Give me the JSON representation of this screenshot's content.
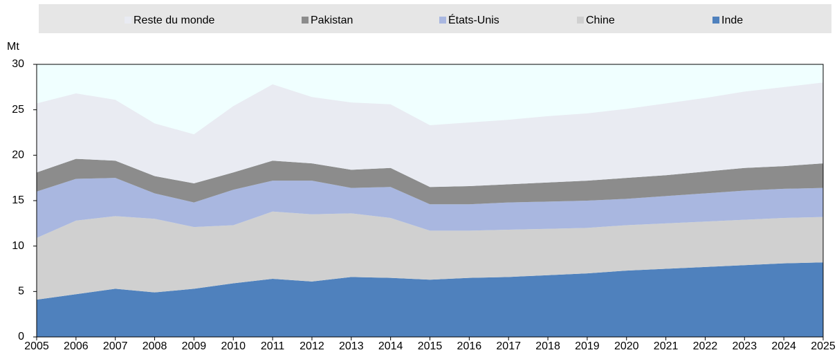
{
  "chart_data": {
    "type": "stacked-area",
    "y_label": "Mt",
    "x": [
      2005,
      2006,
      2007,
      2008,
      2009,
      2010,
      2011,
      2012,
      2013,
      2014,
      2015,
      2016,
      2017,
      2018,
      2019,
      2020,
      2021,
      2022,
      2023,
      2024,
      2025
    ],
    "series": [
      {
        "name": "Inde",
        "color": "#4f81bd",
        "values": [
          4.1,
          4.7,
          5.3,
          4.9,
          5.3,
          5.9,
          6.4,
          6.1,
          6.6,
          6.5,
          6.3,
          6.5,
          6.6,
          6.8,
          7.0,
          7.3,
          7.5,
          7.7,
          7.9,
          8.1,
          8.2
        ]
      },
      {
        "name": "Chine",
        "color": "#d0d0d0",
        "values": [
          6.8,
          8.1,
          8.0,
          8.1,
          6.8,
          6.4,
          7.4,
          7.4,
          7.0,
          6.6,
          5.4,
          5.2,
          5.2,
          5.1,
          5.0,
          5.0,
          5.0,
          5.0,
          5.0,
          5.0,
          5.0
        ]
      },
      {
        "name": "États-Unis",
        "color": "#a9b7e0",
        "values": [
          5.1,
          4.6,
          4.2,
          2.8,
          2.7,
          3.9,
          3.4,
          3.7,
          2.8,
          3.4,
          2.9,
          2.9,
          3.0,
          3.0,
          3.0,
          2.9,
          3.0,
          3.1,
          3.2,
          3.2,
          3.2
        ]
      },
      {
        "name": "Pakistan",
        "color": "#8c8c8c",
        "values": [
          2.1,
          2.2,
          1.9,
          1.9,
          2.1,
          1.9,
          2.2,
          1.9,
          2.0,
          2.1,
          1.9,
          2.0,
          2.0,
          2.1,
          2.2,
          2.3,
          2.3,
          2.4,
          2.5,
          2.5,
          2.7
        ]
      },
      {
        "name": "Reste du monde",
        "color": "#e9ebf2",
        "values": [
          7.6,
          7.2,
          6.7,
          5.8,
          5.4,
          7.3,
          8.4,
          7.3,
          7.4,
          7.0,
          6.8,
          7.0,
          7.1,
          7.3,
          7.4,
          7.6,
          7.9,
          8.1,
          8.4,
          8.7,
          8.9
        ]
      }
    ],
    "xlim": [
      2005,
      2025
    ],
    "xticks": [
      2005,
      2006,
      2007,
      2008,
      2009,
      2010,
      2011,
      2012,
      2013,
      2014,
      2015,
      2016,
      2017,
      2018,
      2019,
      2020,
      2021,
      2022,
      2023,
      2024,
      2025
    ],
    "ylim": [
      0,
      30
    ],
    "yticks": [
      0,
      5,
      10,
      15,
      20,
      25,
      30
    ],
    "plot_background": "#f0ffff",
    "legend_position": "top"
  }
}
